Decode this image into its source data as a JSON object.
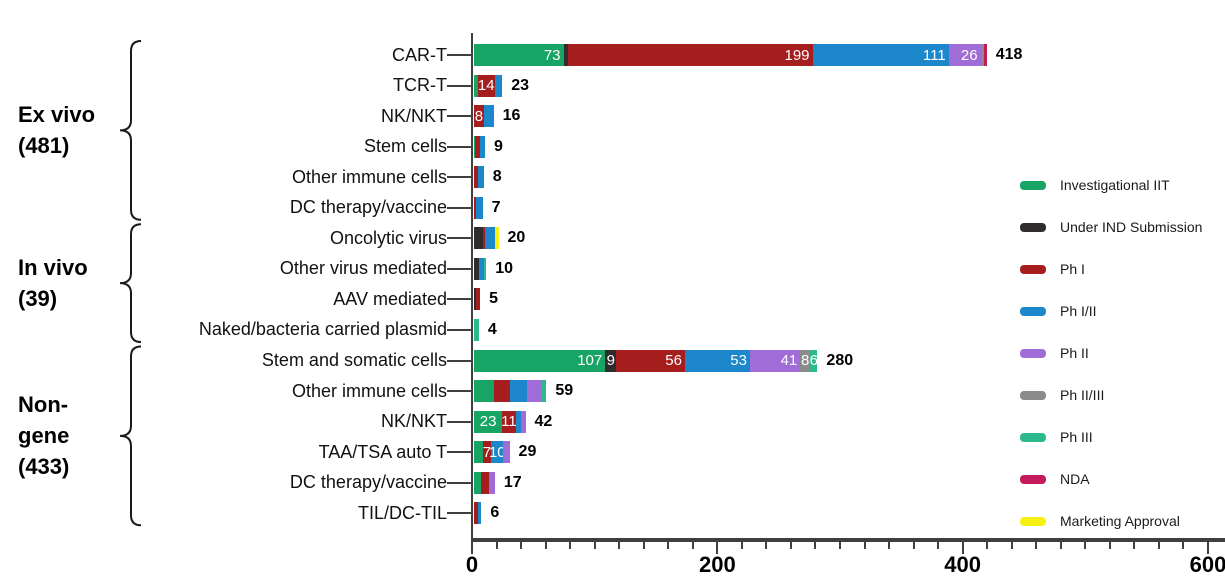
{
  "chart_data": {
    "type": "bar",
    "orientation": "horizontal",
    "stacked": true,
    "title": "",
    "xlabel": "",
    "ylabel": "",
    "xlim": [
      0,
      600
    ],
    "x_major_ticks": [
      0,
      200,
      400,
      600
    ],
    "x_minor_tick_step": 20,
    "grid": false,
    "legend_position": "right",
    "phases": [
      {
        "key": "iit",
        "label": "Investigational IIT",
        "color": "#18a465"
      },
      {
        "key": "ind",
        "label": "Under IND Submission",
        "color": "#302b2d"
      },
      {
        "key": "ph1",
        "label": "Ph I",
        "color": "#a51d1d"
      },
      {
        "key": "ph1_2",
        "label": "Ph I/II",
        "color": "#1c87ca"
      },
      {
        "key": "ph2",
        "label": "Ph II",
        "color": "#a06dd8"
      },
      {
        "key": "ph2_3",
        "label": "Ph II/III",
        "color": "#8b8b8b"
      },
      {
        "key": "ph3",
        "label": "Ph III",
        "color": "#2cb98e"
      },
      {
        "key": "nda",
        "label": "NDA",
        "color": "#c41a5e"
      },
      {
        "key": "mkt",
        "label": "Marketing Approval",
        "color": "#f6f112"
      }
    ],
    "groups": [
      {
        "label": "Ex vivo\n(481)",
        "total": 481,
        "first_row": 0,
        "last_row": 5
      },
      {
        "label": "In vivo\n(39)",
        "total": 39,
        "first_row": 6,
        "last_row": 9
      },
      {
        "label": "Non-\ngene\n(433)",
        "total": 433,
        "first_row": 10,
        "last_row": 15
      }
    ],
    "rows": [
      {
        "label": "CAR-T",
        "total": 418,
        "segments": [
          {
            "phase": "iit",
            "value": 73,
            "text": "73"
          },
          {
            "phase": "ind",
            "value": 4,
            "text": ""
          },
          {
            "phase": "ph1",
            "value": 199,
            "text": "199"
          },
          {
            "phase": "ph1_2",
            "value": 111,
            "text": "111"
          },
          {
            "phase": "ph2",
            "value": 26,
            "text": "26"
          },
          {
            "phase": "ph2_3",
            "value": 3,
            "text": ""
          },
          {
            "phase": "nda",
            "value": 2,
            "text": ""
          }
        ]
      },
      {
        "label": "TCR-T",
        "total": 23,
        "segments": [
          {
            "phase": "iit",
            "value": 3,
            "text": ""
          },
          {
            "phase": "ph1",
            "value": 14,
            "text": "14"
          },
          {
            "phase": "ph1_2",
            "value": 6,
            "text": ""
          }
        ]
      },
      {
        "label": "NK/NKT",
        "total": 16,
        "segments": [
          {
            "phase": "ph1",
            "value": 8,
            "text": "8"
          },
          {
            "phase": "ph1_2",
            "value": 8,
            "text": ""
          }
        ]
      },
      {
        "label": "Stem cells",
        "total": 9,
        "segments": [
          {
            "phase": "iit",
            "value": 1,
            "text": ""
          },
          {
            "phase": "ph1",
            "value": 4,
            "text": ""
          },
          {
            "phase": "ph1_2",
            "value": 4,
            "text": ""
          }
        ]
      },
      {
        "label": "Other immune cells",
        "total": 8,
        "segments": [
          {
            "phase": "ph1",
            "value": 3,
            "text": ""
          },
          {
            "phase": "ph1_2",
            "value": 5,
            "text": ""
          }
        ]
      },
      {
        "label": "DC therapy/vaccine",
        "total": 7,
        "segments": [
          {
            "phase": "ph1",
            "value": 2,
            "text": ""
          },
          {
            "phase": "ph1_2",
            "value": 5,
            "text": ""
          }
        ]
      },
      {
        "label": "Oncolytic virus",
        "total": 20,
        "segments": [
          {
            "phase": "ind",
            "value": 7,
            "text": ""
          },
          {
            "phase": "ph1",
            "value": 2,
            "text": ""
          },
          {
            "phase": "ph1_2",
            "value": 8,
            "text": ""
          },
          {
            "phase": "mkt",
            "value": 3,
            "text": ""
          }
        ]
      },
      {
        "label": "Other virus mediated",
        "total": 10,
        "segments": [
          {
            "phase": "ind",
            "value": 4,
            "text": ""
          },
          {
            "phase": "ph1_2",
            "value": 4,
            "text": ""
          },
          {
            "phase": "ph3",
            "value": 2,
            "text": ""
          }
        ]
      },
      {
        "label": "AAV mediated",
        "total": 5,
        "segments": [
          {
            "phase": "ind",
            "value": 2,
            "text": ""
          },
          {
            "phase": "ph1",
            "value": 3,
            "text": ""
          }
        ]
      },
      {
        "label": "Naked/bacteria carried plasmid",
        "total": 4,
        "segments": [
          {
            "phase": "ph3",
            "value": 4,
            "text": ""
          }
        ]
      },
      {
        "label": "Stem and somatic cells",
        "total": 280,
        "segments": [
          {
            "phase": "iit",
            "value": 107,
            "text": "107"
          },
          {
            "phase": "ind",
            "value": 9,
            "text": "9"
          },
          {
            "phase": "ph1",
            "value": 56,
            "text": "56"
          },
          {
            "phase": "ph1_2",
            "value": 53,
            "text": "53"
          },
          {
            "phase": "ph2",
            "value": 41,
            "text": "41"
          },
          {
            "phase": "ph2_3",
            "value": 8,
            "text": "8"
          },
          {
            "phase": "ph3",
            "value": 6,
            "text": "6"
          }
        ]
      },
      {
        "label": "Other immune cells",
        "total": 59,
        "segments": [
          {
            "phase": "iit",
            "value": 16,
            "text": ""
          },
          {
            "phase": "ph1",
            "value": 13,
            "text": ""
          },
          {
            "phase": "ph1_2",
            "value": 14,
            "text": ""
          },
          {
            "phase": "ph2",
            "value": 12,
            "text": ""
          },
          {
            "phase": "ph3",
            "value": 4,
            "text": ""
          }
        ]
      },
      {
        "label": "NK/NKT",
        "total": 42,
        "segments": [
          {
            "phase": "iit",
            "value": 23,
            "text": "23"
          },
          {
            "phase": "ph1",
            "value": 11,
            "text": "11"
          },
          {
            "phase": "ph1_2",
            "value": 4,
            "text": ""
          },
          {
            "phase": "ph2",
            "value": 4,
            "text": ""
          }
        ]
      },
      {
        "label": "TAA/TSA auto T",
        "total": 29,
        "segments": [
          {
            "phase": "iit",
            "value": 7,
            "text": ""
          },
          {
            "phase": "ph1",
            "value": 7,
            "text": "7"
          },
          {
            "phase": "ph1_2",
            "value": 10,
            "text": "10"
          },
          {
            "phase": "ph2",
            "value": 5,
            "text": ""
          }
        ]
      },
      {
        "label": "DC therapy/vaccine",
        "total": 17,
        "segments": [
          {
            "phase": "iit",
            "value": 6,
            "text": ""
          },
          {
            "phase": "ph1",
            "value": 6,
            "text": ""
          },
          {
            "phase": "ph2",
            "value": 5,
            "text": ""
          }
        ]
      },
      {
        "label": "TIL/DC-TIL",
        "total": 6,
        "segments": [
          {
            "phase": "ph1",
            "value": 3,
            "text": ""
          },
          {
            "phase": "ph1_2",
            "value": 3,
            "text": ""
          }
        ]
      }
    ]
  }
}
